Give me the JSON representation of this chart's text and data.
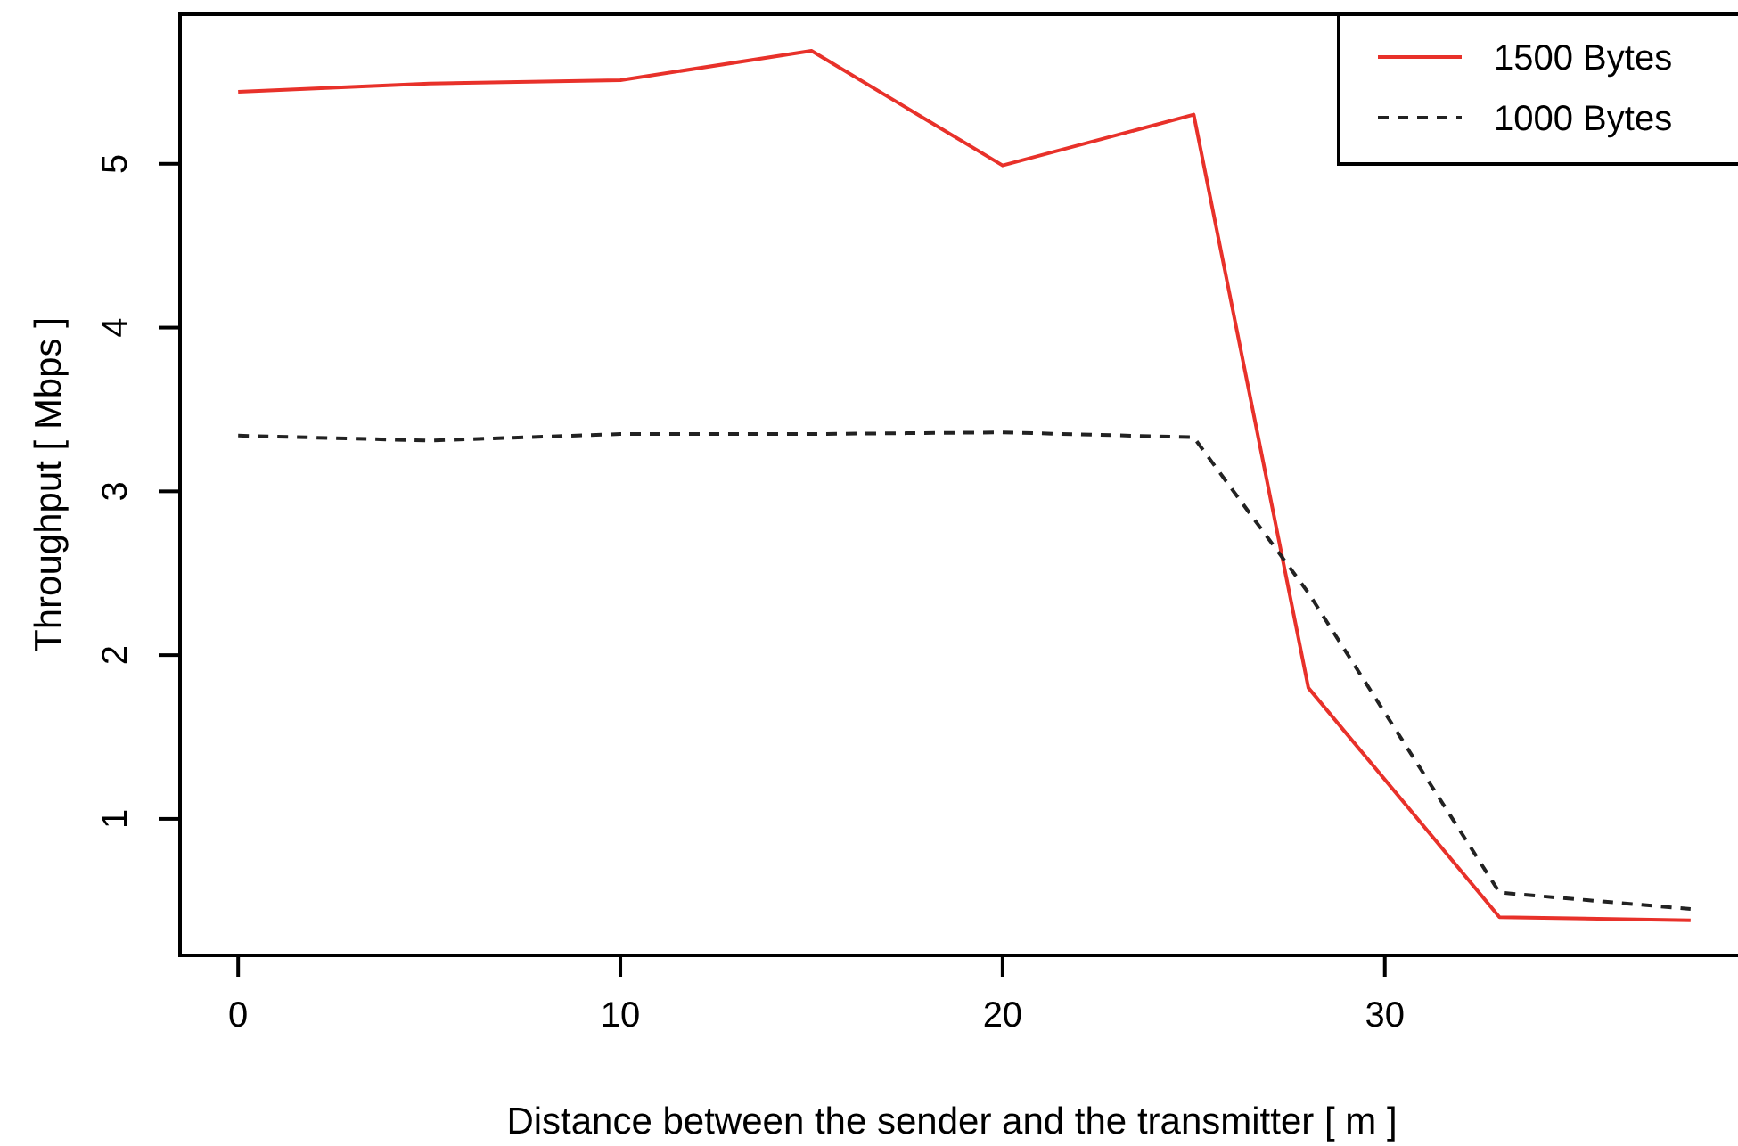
{
  "chart_data": {
    "type": "line",
    "xlabel": "Distance between the sender and the transmitter [ m ]",
    "ylabel": "Throughput [ Mbps ]",
    "x": [
      0,
      5,
      10,
      15,
      20,
      25,
      28,
      33,
      38
    ],
    "series": [
      {
        "name": "1500 Bytes",
        "color": "#e8312a",
        "line_style": "solid",
        "values": [
          5.44,
          5.49,
          5.51,
          5.69,
          4.99,
          5.3,
          1.8,
          0.4,
          0.38
        ]
      },
      {
        "name": "1000 Bytes",
        "color": "#222222",
        "line_style": "dashed",
        "values": [
          3.34,
          3.31,
          3.35,
          3.35,
          3.36,
          3.33,
          2.38,
          0.55,
          0.45
        ]
      }
    ],
    "xlim": [
      -1.52,
      39.52
    ],
    "ylim": [
      0.167,
      5.913
    ],
    "xticks": [
      0,
      10,
      20,
      30
    ],
    "yticks": [
      1,
      2,
      3,
      4,
      5
    ],
    "grid": false,
    "legend": "top right"
  }
}
